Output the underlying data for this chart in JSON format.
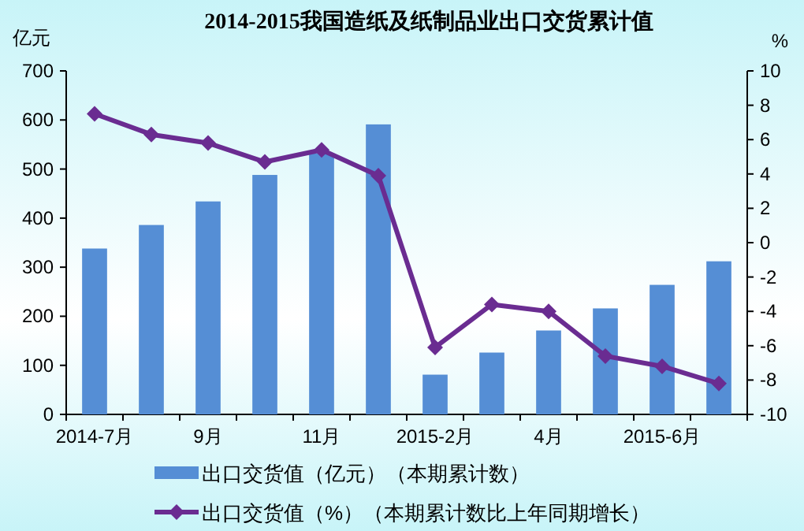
{
  "chart_data": {
    "type": "bar",
    "title": "2014-2015我国造纸及纸制品业出口交货累计值",
    "ylabel": "亿元",
    "y2label": "%",
    "categories": [
      "2014-7月",
      null,
      "9月",
      null,
      "11月",
      null,
      "2015-2月",
      null,
      "4月",
      null,
      "2015-6月",
      null
    ],
    "series": [
      {
        "name": "出口交货值（亿元）（本期累计数）",
        "color": "#558ed5",
        "values": [
          338,
          386,
          434,
          488,
          532,
          591,
          81,
          126,
          171,
          216,
          264,
          312
        ]
      },
      {
        "name": "出口交货值（%）（本期累计数比上年同期增长）",
        "type": "line",
        "axis": "y2",
        "color": "#6a2c91",
        "marker": "diamond",
        "values": [
          7.5,
          6.3,
          5.8,
          4.7,
          5.4,
          3.9,
          -6.1,
          -3.6,
          -4.0,
          -6.6,
          -7.2,
          -8.2
        ]
      }
    ],
    "ylim": [
      0,
      700
    ],
    "yticks": [
      0,
      100,
      200,
      300,
      400,
      500,
      600,
      700
    ],
    "y2lim": [
      -10,
      10
    ],
    "y2ticks": [
      -10,
      -8,
      -6,
      -4,
      -2,
      0,
      2,
      4,
      6,
      8,
      10
    ],
    "legend": "bottom"
  }
}
